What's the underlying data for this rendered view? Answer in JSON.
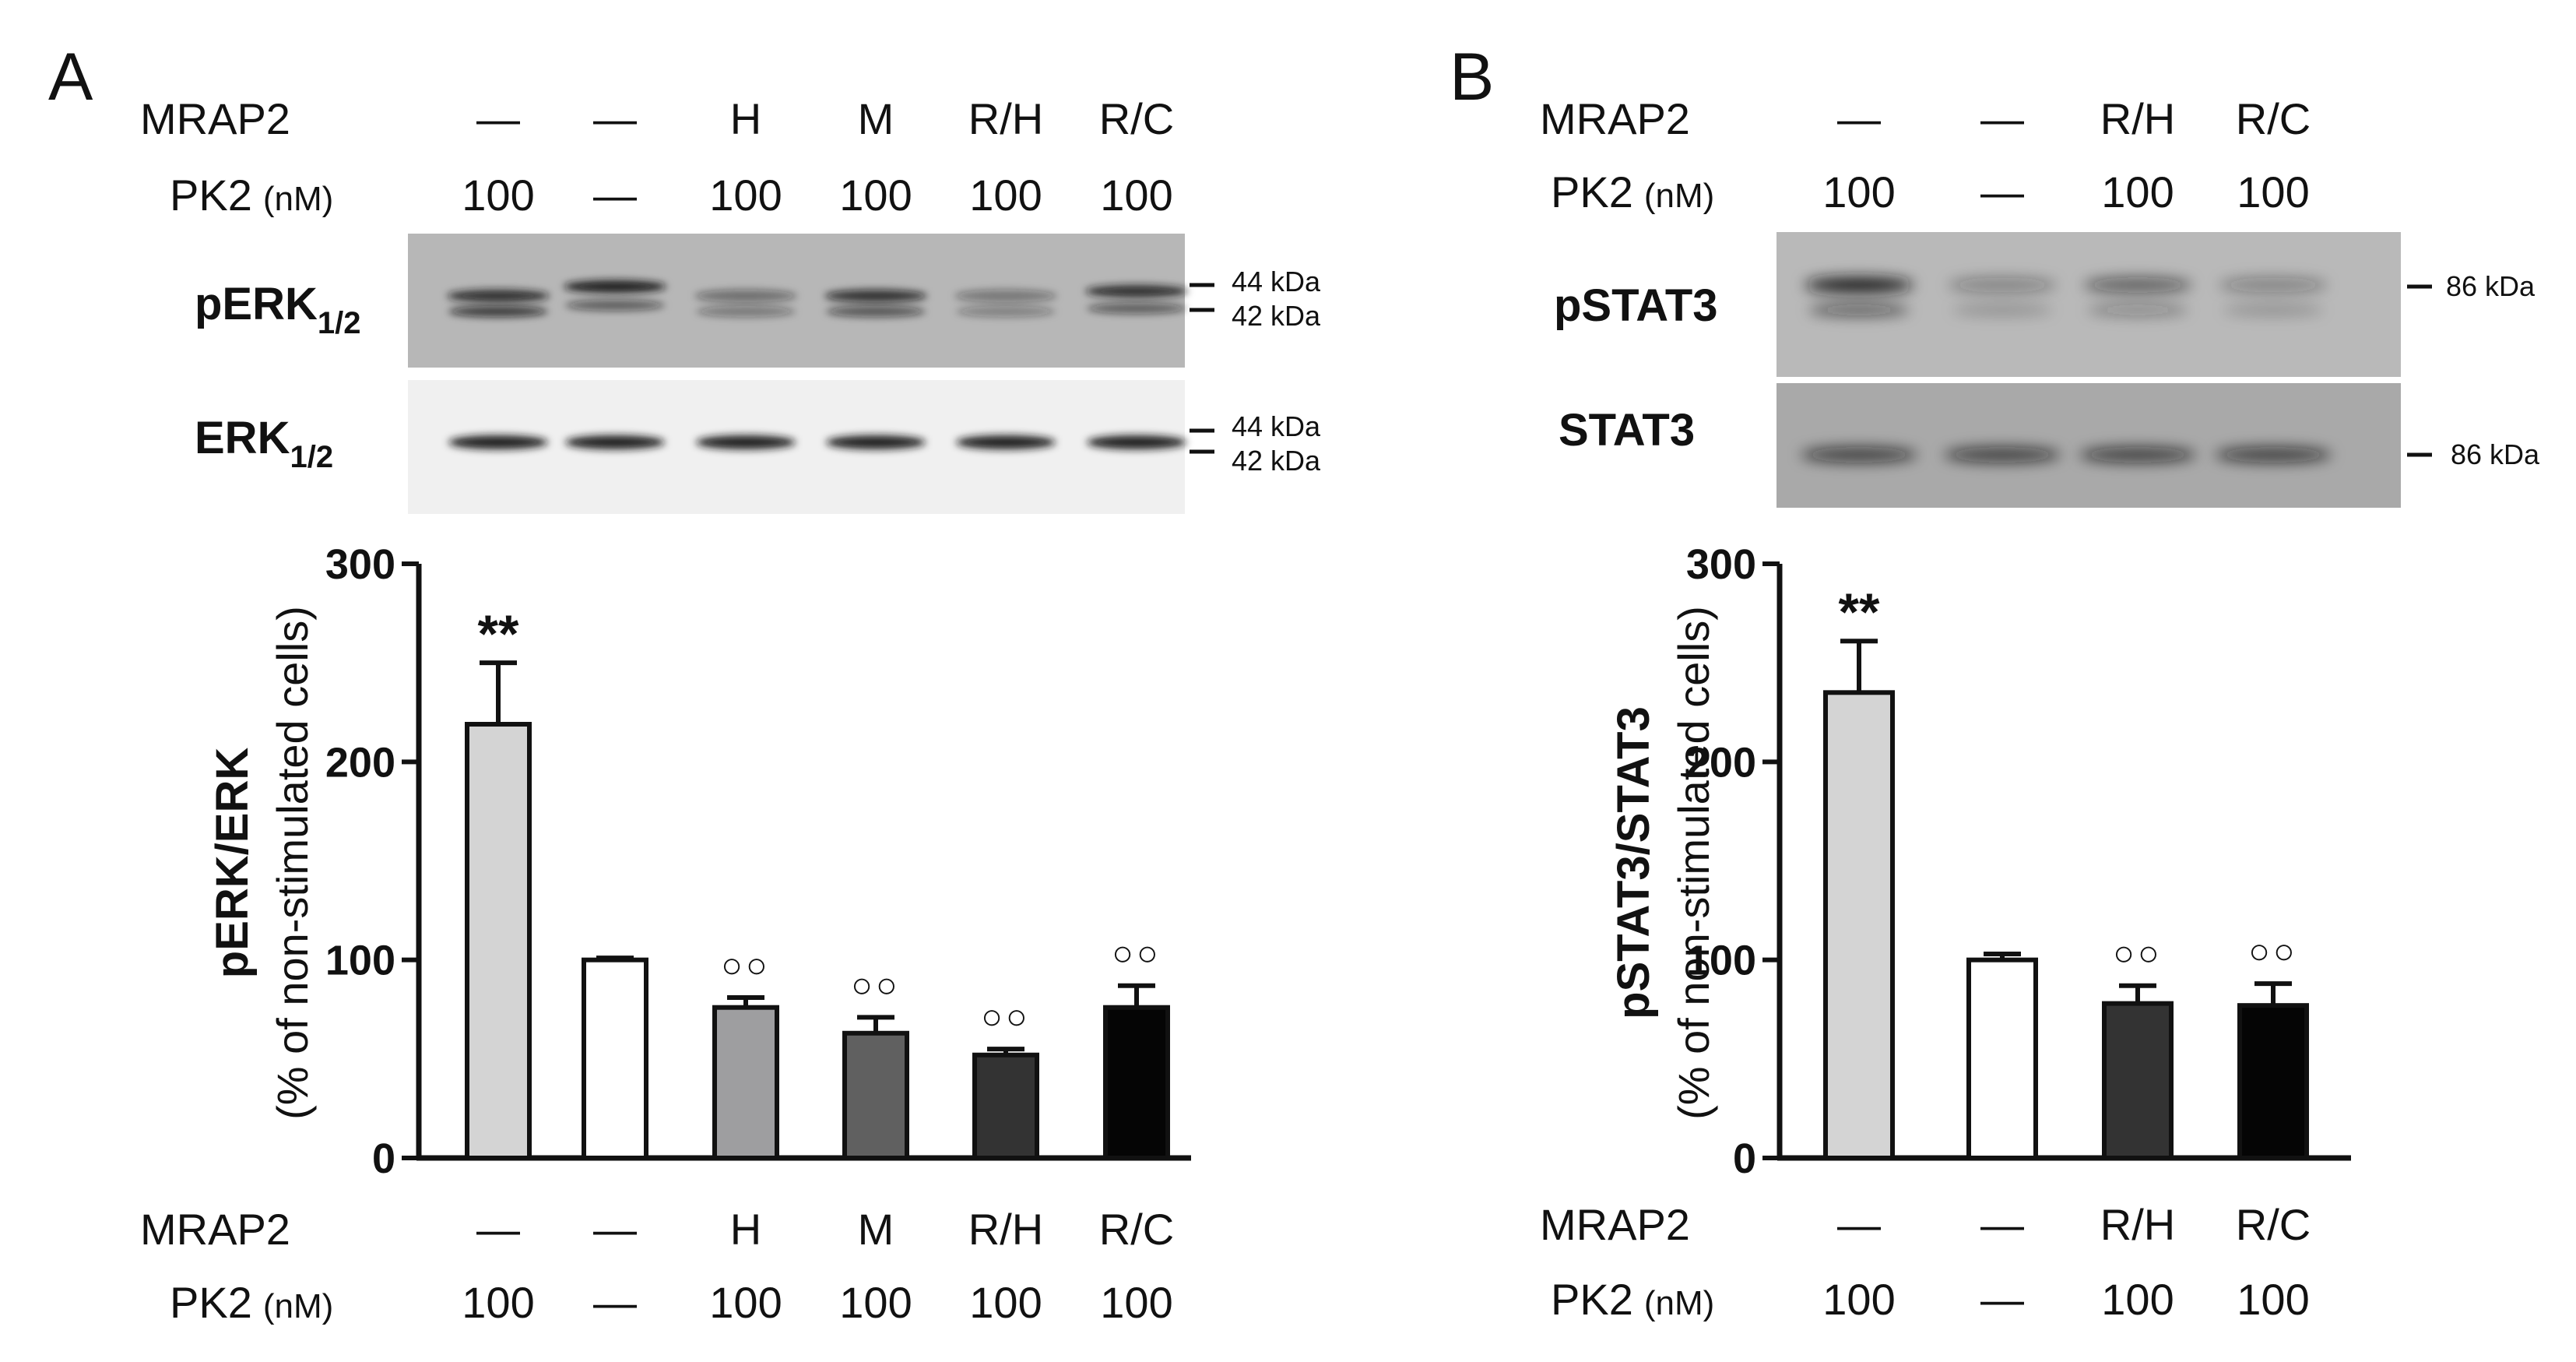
{
  "figure": {
    "panels": [
      {
        "letter": "A",
        "header": {
          "mrap2_label": "MRAP2",
          "pk2_label": "PK2",
          "pk2_unit": "(nM)",
          "mrap2_values": [
            "—",
            "—",
            "H",
            "M",
            "R/H",
            "R/C"
          ],
          "pk2_values": [
            "100",
            "—",
            "100",
            "100",
            "100",
            "100"
          ]
        },
        "blots": [
          {
            "label": "pERK",
            "label_sub": "1/2",
            "markers": [
              "44 kDa",
              "42 kDa"
            ]
          },
          {
            "label": "ERK",
            "label_sub": "1/2",
            "markers": [
              "44 kDa",
              "42 kDa"
            ]
          }
        ],
        "footer": {
          "mrap2_label": "MRAP2",
          "pk2_label": "PK2",
          "pk2_unit": "(nM)",
          "mrap2_values": [
            "—",
            "—",
            "H",
            "M",
            "R/H",
            "R/C"
          ],
          "pk2_values": [
            "100",
            "—",
            "100",
            "100",
            "100",
            "100"
          ]
        }
      },
      {
        "letter": "B",
        "header": {
          "mrap2_label": "MRAP2",
          "pk2_label": "PK2",
          "pk2_unit": "(nM)",
          "mrap2_values": [
            "—",
            "—",
            "R/H",
            "R/C"
          ],
          "pk2_values": [
            "100",
            "—",
            "100",
            "100"
          ]
        },
        "blots": [
          {
            "label": "pSTAT3",
            "label_sub": "",
            "markers": [
              "86 kDa"
            ]
          },
          {
            "label": "STAT3",
            "label_sub": "",
            "markers": [
              "86 kDa"
            ]
          }
        ],
        "footer": {
          "mrap2_label": "MRAP2",
          "pk2_label": "PK2",
          "pk2_unit": "(nM)",
          "mrap2_values": [
            "—",
            "—",
            "R/H",
            "R/C"
          ],
          "pk2_values": [
            "100",
            "—",
            "100",
            "100"
          ]
        }
      }
    ]
  },
  "chart_data": [
    {
      "type": "bar",
      "panel": "A",
      "ylabel": "pERK/ERK",
      "ylabel_sub": "(% of non-stimulated cells)",
      "ylim": [
        0,
        300
      ],
      "yticks": [
        0,
        100,
        200,
        300
      ],
      "categories": [
        "— / 100",
        "— / —",
        "H / 100",
        "M / 100",
        "R/H / 100",
        "R/C / 100"
      ],
      "values": [
        219,
        100,
        76,
        63,
        52,
        76
      ],
      "errors": [
        31,
        1,
        5,
        8,
        3,
        11
      ],
      "bar_colors": [
        "#d4d4d4",
        "#ffffff",
        "#9e9ea0",
        "#606060",
        "#333333",
        "#050505"
      ],
      "annotations": [
        "**",
        "",
        "○○",
        "○○",
        "○○",
        "○○"
      ]
    },
    {
      "type": "bar",
      "panel": "B",
      "ylabel": "pSTAT3/STAT3",
      "ylabel_sub": "(% of non-stimulated cells)",
      "ylim": [
        0,
        300
      ],
      "yticks": [
        0,
        100,
        200,
        300
      ],
      "categories": [
        "— / 100",
        "— / —",
        "R/H / 100",
        "R/C / 100"
      ],
      "values": [
        235,
        100,
        78,
        77
      ],
      "errors": [
        26,
        3,
        9,
        11
      ],
      "bar_colors": [
        "#d4d4d4",
        "#ffffff",
        "#333333",
        "#050505"
      ],
      "annotations": [
        "**",
        "",
        "○○",
        "○○"
      ]
    }
  ]
}
